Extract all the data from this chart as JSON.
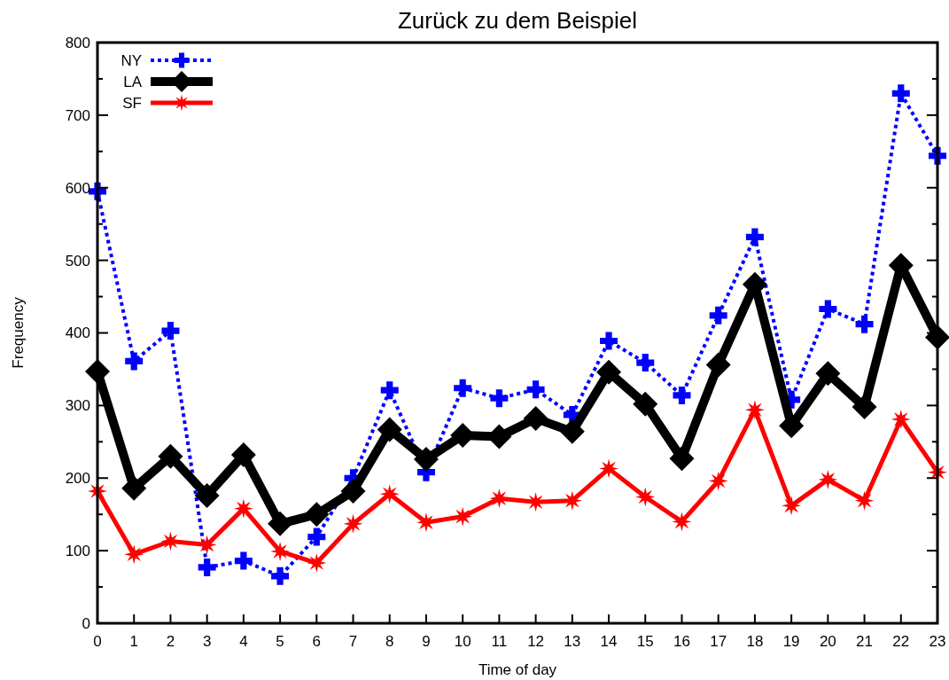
{
  "chart_data": {
    "type": "line",
    "title": "Zurück zu dem Beispiel",
    "xlabel": "Time of day",
    "ylabel": "Frequency",
    "x": [
      0,
      1,
      2,
      3,
      4,
      5,
      6,
      7,
      8,
      9,
      10,
      11,
      12,
      13,
      14,
      15,
      16,
      17,
      18,
      19,
      20,
      21,
      22,
      23
    ],
    "series": [
      {
        "name": "NY",
        "color": "#0000ff",
        "marker": "cross",
        "line_style": "dotted",
        "values": [
          595,
          361,
          403,
          77,
          86,
          65,
          119,
          200,
          321,
          208,
          324,
          310,
          322,
          287,
          389,
          359,
          314,
          424,
          532,
          308,
          433,
          412,
          730,
          644
        ]
      },
      {
        "name": "LA",
        "color": "#000000",
        "marker": "diamond",
        "line_style": "solid",
        "values": [
          347,
          186,
          230,
          176,
          232,
          137,
          150,
          182,
          267,
          226,
          259,
          257,
          282,
          264,
          346,
          302,
          227,
          356,
          467,
          272,
          344,
          298,
          493,
          394
        ]
      },
      {
        "name": "SF",
        "color": "#ff0000",
        "marker": "star",
        "line_style": "solid",
        "values": [
          182,
          95,
          113,
          108,
          158,
          99,
          83,
          137,
          178,
          139,
          147,
          172,
          167,
          169,
          213,
          174,
          140,
          196,
          294,
          162,
          198,
          169,
          281,
          208
        ]
      }
    ],
    "xlim": [
      0,
      23
    ],
    "xticks": [
      0,
      1,
      2,
      3,
      4,
      5,
      6,
      7,
      8,
      9,
      10,
      11,
      12,
      13,
      14,
      15,
      16,
      17,
      18,
      19,
      20,
      21,
      22,
      23
    ],
    "ylim": [
      0,
      800
    ],
    "yticks": [
      0,
      {
        "value": 50,
        "label": null
      },
      100,
      {
        "value": 150,
        "label": null
      },
      200,
      {
        "value": 250,
        "label": null
      },
      300,
      {
        "value": 350,
        "label": null
      },
      400,
      {
        "value": 450,
        "label": null
      },
      500,
      {
        "value": 550,
        "label": null
      },
      600,
      {
        "value": 650,
        "label": null
      },
      700,
      {
        "value": 750,
        "label": null
      },
      800
    ],
    "grid": false,
    "legend": "top left"
  }
}
